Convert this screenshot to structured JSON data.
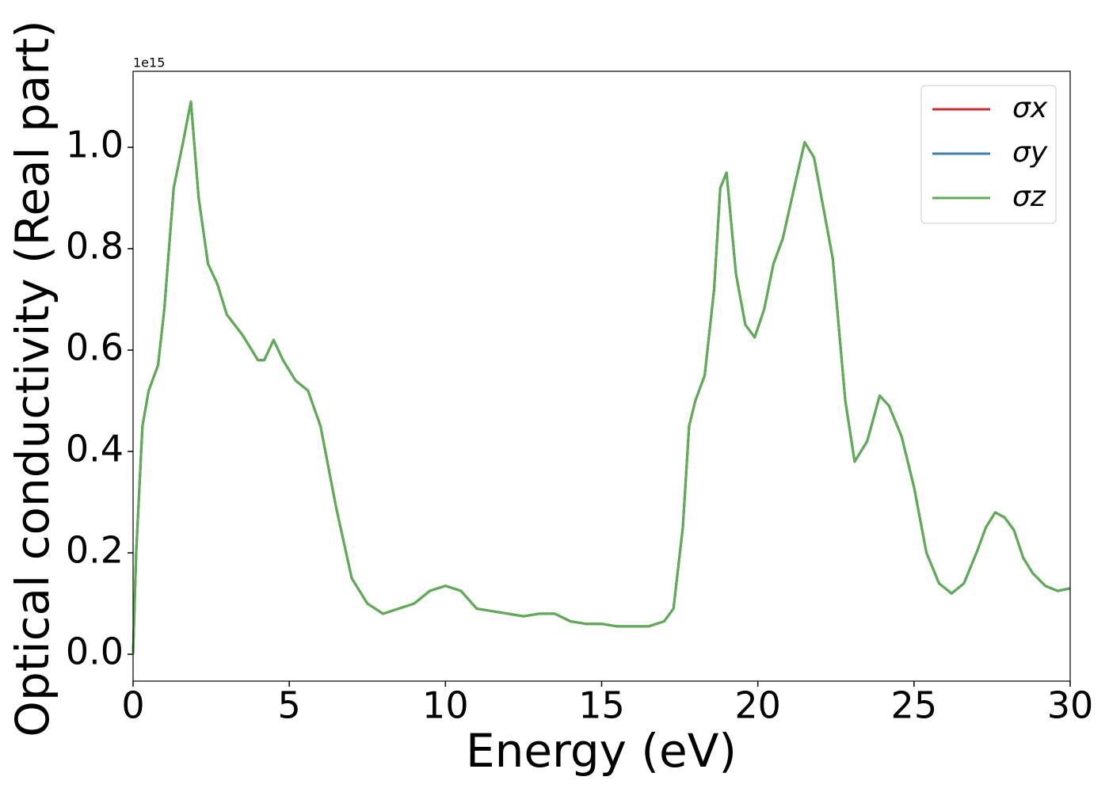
{
  "chart_data": {
    "type": "line",
    "xlabel": "Energy (eV)",
    "ylabel": "Optical conductivity (Real part)",
    "y_offset_label": "1e15",
    "x": [
      0,
      0.1,
      0.3,
      0.5,
      0.8,
      1.0,
      1.3,
      1.6,
      1.85,
      2.1,
      2.4,
      2.7,
      3.0,
      3.5,
      4.0,
      4.2,
      4.5,
      4.8,
      5.2,
      5.6,
      6.0,
      6.5,
      7.0,
      7.5,
      8.0,
      8.5,
      9.0,
      9.5,
      10.0,
      10.5,
      11.0,
      11.5,
      12.0,
      12.5,
      13.0,
      13.5,
      14.0,
      14.5,
      15.0,
      15.5,
      16.0,
      16.5,
      17.0,
      17.3,
      17.6,
      17.8,
      18.0,
      18.3,
      18.6,
      18.8,
      19.0,
      19.3,
      19.6,
      19.9,
      20.2,
      20.5,
      20.8,
      21.2,
      21.5,
      21.8,
      22.1,
      22.4,
      22.8,
      23.1,
      23.5,
      23.9,
      24.2,
      24.6,
      25.0,
      25.4,
      25.8,
      26.2,
      26.6,
      27.0,
      27.3,
      27.6,
      27.9,
      28.2,
      28.5,
      28.8,
      29.2,
      29.6,
      30.0
    ],
    "series": [
      {
        "name": "σx",
        "color": "#d62728",
        "values": [
          0,
          0.2,
          0.45,
          0.52,
          0.57,
          0.68,
          0.92,
          1.01,
          1.09,
          0.9,
          0.77,
          0.73,
          0.67,
          0.63,
          0.58,
          0.58,
          0.62,
          0.58,
          0.54,
          0.52,
          0.45,
          0.29,
          0.15,
          0.1,
          0.08,
          0.09,
          0.1,
          0.125,
          0.135,
          0.125,
          0.09,
          0.085,
          0.08,
          0.075,
          0.08,
          0.08,
          0.065,
          0.06,
          0.06,
          0.055,
          0.055,
          0.055,
          0.065,
          0.09,
          0.25,
          0.45,
          0.5,
          0.55,
          0.72,
          0.92,
          0.95,
          0.75,
          0.65,
          0.625,
          0.68,
          0.77,
          0.82,
          0.93,
          1.01,
          0.98,
          0.88,
          0.78,
          0.5,
          0.38,
          0.42,
          0.51,
          0.49,
          0.43,
          0.33,
          0.2,
          0.14,
          0.12,
          0.14,
          0.2,
          0.25,
          0.28,
          0.27,
          0.245,
          0.19,
          0.16,
          0.135,
          0.125,
          0.13
        ]
      },
      {
        "name": "σy",
        "color": "#3a7fb5",
        "values": [
          0,
          0.2,
          0.45,
          0.52,
          0.57,
          0.68,
          0.92,
          1.01,
          1.09,
          0.9,
          0.77,
          0.73,
          0.67,
          0.63,
          0.58,
          0.58,
          0.62,
          0.58,
          0.54,
          0.52,
          0.45,
          0.29,
          0.15,
          0.1,
          0.08,
          0.09,
          0.1,
          0.125,
          0.135,
          0.125,
          0.09,
          0.085,
          0.08,
          0.075,
          0.08,
          0.08,
          0.065,
          0.06,
          0.06,
          0.055,
          0.055,
          0.055,
          0.065,
          0.09,
          0.25,
          0.45,
          0.5,
          0.55,
          0.72,
          0.92,
          0.95,
          0.75,
          0.65,
          0.625,
          0.68,
          0.77,
          0.82,
          0.93,
          1.01,
          0.98,
          0.88,
          0.78,
          0.5,
          0.38,
          0.42,
          0.51,
          0.49,
          0.43,
          0.33,
          0.2,
          0.14,
          0.12,
          0.14,
          0.2,
          0.25,
          0.28,
          0.27,
          0.245,
          0.19,
          0.16,
          0.135,
          0.125,
          0.13
        ]
      },
      {
        "name": "σz",
        "color": "#5aaf4f",
        "values": [
          0,
          0.2,
          0.45,
          0.52,
          0.57,
          0.68,
          0.92,
          1.01,
          1.09,
          0.9,
          0.77,
          0.73,
          0.67,
          0.63,
          0.58,
          0.58,
          0.62,
          0.58,
          0.54,
          0.52,
          0.45,
          0.29,
          0.15,
          0.1,
          0.08,
          0.09,
          0.1,
          0.125,
          0.135,
          0.125,
          0.09,
          0.085,
          0.08,
          0.075,
          0.08,
          0.08,
          0.065,
          0.06,
          0.06,
          0.055,
          0.055,
          0.055,
          0.065,
          0.09,
          0.25,
          0.45,
          0.5,
          0.55,
          0.72,
          0.92,
          0.95,
          0.75,
          0.65,
          0.625,
          0.68,
          0.77,
          0.82,
          0.93,
          1.01,
          0.98,
          0.88,
          0.78,
          0.5,
          0.38,
          0.42,
          0.51,
          0.49,
          0.43,
          0.33,
          0.2,
          0.14,
          0.12,
          0.14,
          0.2,
          0.25,
          0.28,
          0.27,
          0.245,
          0.19,
          0.16,
          0.135,
          0.125,
          0.13
        ]
      }
    ],
    "xlim": [
      0,
      30
    ],
    "xticks": [
      0,
      5,
      10,
      15,
      20,
      25,
      30
    ],
    "ylim": [
      -0.053,
      1.15
    ],
    "yticks": [
      {
        "value": 0,
        "label": "0.0"
      },
      0.2,
      0.4,
      0.6,
      0.8,
      {
        "value": 1,
        "label": "1.0"
      }
    ],
    "legend": "upper right",
    "grid": false
  }
}
